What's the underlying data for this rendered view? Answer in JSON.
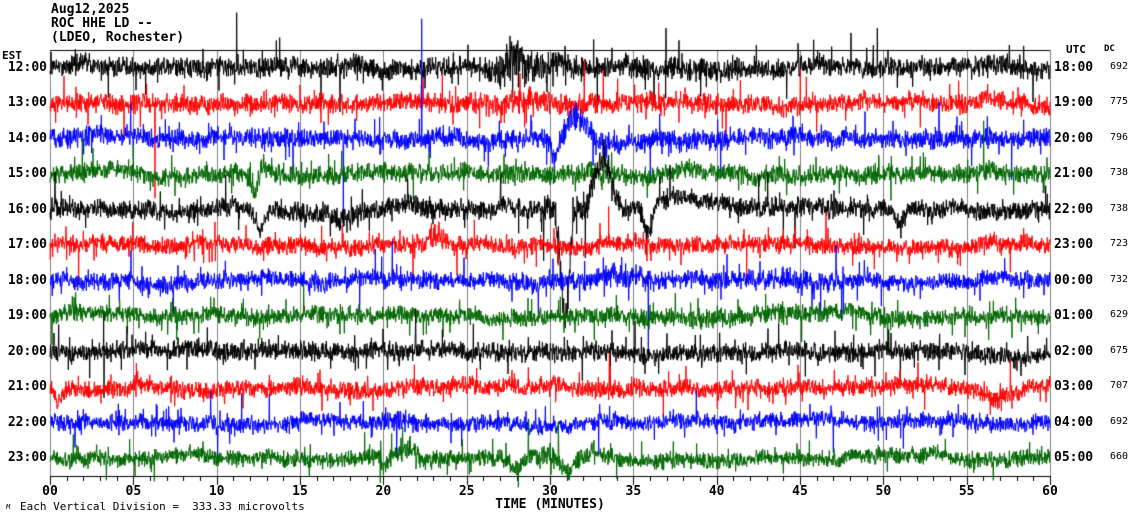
{
  "title_block": {
    "date": "Aug12,2025",
    "station": "ROC HHE LD --",
    "network": "(LDEO, Rochester)"
  },
  "footer": {
    "corner_mark": "M"
  },
  "chart_data": {
    "type": "line",
    "description": "24-hour helicorder seismogram, 12 horizontal trace rows of one hour each",
    "left_axis_header": "EST",
    "right_axis_header": "UTC",
    "dc_column_header": "DC",
    "scale_note": "Each Vertical Division =  333.33 microvolts",
    "x_axis": {
      "title": "TIME (MINUTES)",
      "range_minutes": [
        0,
        60
      ],
      "major_tick_minutes": 5,
      "minor_tick_minutes": 1,
      "tick_labels": [
        "00",
        "05",
        "10",
        "15",
        "20",
        "25",
        "30",
        "35",
        "40",
        "45",
        "50",
        "55",
        "60"
      ]
    },
    "palette": {
      "trace_cycle": [
        "#000000",
        "#ff0000",
        "#0000ff",
        "#006600"
      ],
      "grid": "#808080",
      "frame": "#000000",
      "text": "#000000"
    },
    "grid": "vertical lines every 5 minutes",
    "legend_position": "none",
    "rows": [
      {
        "est": "12:00",
        "utc": "18:00",
        "dc": 692,
        "color": "#000000",
        "seed": 101,
        "amp": 7.0,
        "bursts": [
          [
            27.8,
            1.2,
            2.2
          ],
          [
            30.5,
            1.5,
            1.5
          ],
          [
            36,
            4,
            1.2
          ]
        ],
        "offsets": [
          [
            27.9,
            0.5,
            -14
          ],
          [
            30.6,
            0.6,
            -8
          ]
        ],
        "spikes": [
          [
            11.2,
            -55
          ],
          [
            3.5,
            30
          ]
        ]
      },
      {
        "est": "13:00",
        "utc": "19:00",
        "dc": 775,
        "color": "#ff0000",
        "seed": 102,
        "amp": 6.5,
        "bursts": [
          [
            27,
            2,
            1.3
          ],
          [
            31,
            2,
            1.3
          ]
        ],
        "offsets": [],
        "spikes": [
          [
            6.3,
            95
          ],
          [
            28.2,
            -30
          ]
        ]
      },
      {
        "est": "14:00",
        "utc": "20:00",
        "dc": 796,
        "color": "#0000ff",
        "seed": 103,
        "amp": 6.5,
        "bursts": [
          [
            32,
            2,
            1.5
          ],
          [
            13.5,
            1,
            1.3
          ]
        ],
        "offsets": [
          [
            30.3,
            0.4,
            18
          ],
          [
            31.6,
            0.8,
            -16
          ],
          [
            33.6,
            1.2,
            9
          ]
        ],
        "spikes": [
          [
            17.6,
            88
          ],
          [
            22.3,
            -120
          ]
        ]
      },
      {
        "est": "15:00",
        "utc": "21:00",
        "dc": 738,
        "color": "#006600",
        "seed": 104,
        "amp": 6.5,
        "bursts": [
          [
            12.4,
            0.5,
            1.5
          ]
        ],
        "offsets": [
          [
            12.3,
            0.3,
            14
          ],
          [
            12.8,
            0.3,
            -8
          ]
        ],
        "spikes": [
          [
            21.8,
            25
          ]
        ]
      },
      {
        "est": "16:00",
        "utc": "22:00",
        "dc": 738,
        "color": "#000000",
        "seed": 105,
        "amp": 6.5,
        "bursts": [
          [
            31.5,
            2.5,
            1.6
          ],
          [
            17,
            2,
            1.2
          ]
        ],
        "offsets": [
          [
            12.6,
            0.4,
            20
          ],
          [
            17.5,
            1.5,
            7
          ],
          [
            30.9,
            0.35,
            112
          ],
          [
            33.2,
            0.7,
            -50
          ],
          [
            35.9,
            0.35,
            30
          ],
          [
            37.5,
            1.8,
            -14
          ],
          [
            51,
            0.3,
            17
          ]
        ],
        "spikes": [
          [
            44,
            25
          ]
        ]
      },
      {
        "est": "17:00",
        "utc": "23:00",
        "dc": 723,
        "color": "#ff0000",
        "seed": 106,
        "amp": 6.0,
        "bursts": [
          [
            23.3,
            0.8,
            1.5
          ]
        ],
        "offsets": [
          [
            23.3,
            0.5,
            -9
          ]
        ],
        "spikes": [
          [
            30.5,
            20
          ]
        ]
      },
      {
        "est": "18:00",
        "utc": "00:00",
        "dc": 732,
        "color": "#0000ff",
        "seed": 107,
        "amp": 6.0,
        "bursts": [
          [
            34.5,
            1.5,
            1.5
          ],
          [
            44,
            2.5,
            1.3
          ]
        ],
        "offsets": [
          [
            34,
            1,
            -5
          ]
        ],
        "spikes": [
          [
            35.9,
            70
          ],
          [
            47.5,
            40
          ]
        ]
      },
      {
        "est": "19:00",
        "utc": "01:00",
        "dc": 629,
        "color": "#006600",
        "seed": 108,
        "amp": 6.0,
        "bursts": [
          [
            41,
            2,
            1.2
          ]
        ],
        "offsets": [],
        "spikes": []
      },
      {
        "est": "20:00",
        "utc": "02:00",
        "dc": 675,
        "color": "#000000",
        "seed": 109,
        "amp": 6.5,
        "bursts": [
          [
            14,
            2,
            1.15
          ]
        ],
        "offsets": [],
        "spikes": [
          [
            25.4,
            -28
          ]
        ]
      },
      {
        "est": "21:00",
        "utc": "03:00",
        "dc": 707,
        "color": "#ff0000",
        "seed": 110,
        "amp": 6.0,
        "bursts": [],
        "offsets": [
          [
            0.5,
            0.3,
            12
          ],
          [
            56.6,
            0.7,
            11
          ],
          [
            58.2,
            0.6,
            5
          ]
        ],
        "spikes": [
          [
            36.8,
            30
          ]
        ]
      },
      {
        "est": "22:00",
        "utc": "04:00",
        "dc": 692,
        "color": "#0000ff",
        "seed": 111,
        "amp": 5.5,
        "bursts": [
          [
            21,
            0.8,
            1.4
          ]
        ],
        "offsets": [],
        "spikes": [
          [
            20.8,
            35
          ],
          [
            47,
            30
          ]
        ]
      },
      {
        "est": "23:00",
        "utc": "05:00",
        "dc": 660,
        "color": "#006600",
        "seed": 112,
        "amp": 5.5,
        "bursts": [
          [
            21,
            1.5,
            1.4
          ],
          [
            30,
            2,
            1.4
          ]
        ],
        "offsets": [
          [
            20.1,
            0.25,
            12
          ],
          [
            21.5,
            0.7,
            -13
          ],
          [
            27.9,
            0.5,
            9
          ],
          [
            31.1,
            0.5,
            15
          ],
          [
            33,
            1,
            -7
          ]
        ],
        "spikes": []
      }
    ]
  }
}
